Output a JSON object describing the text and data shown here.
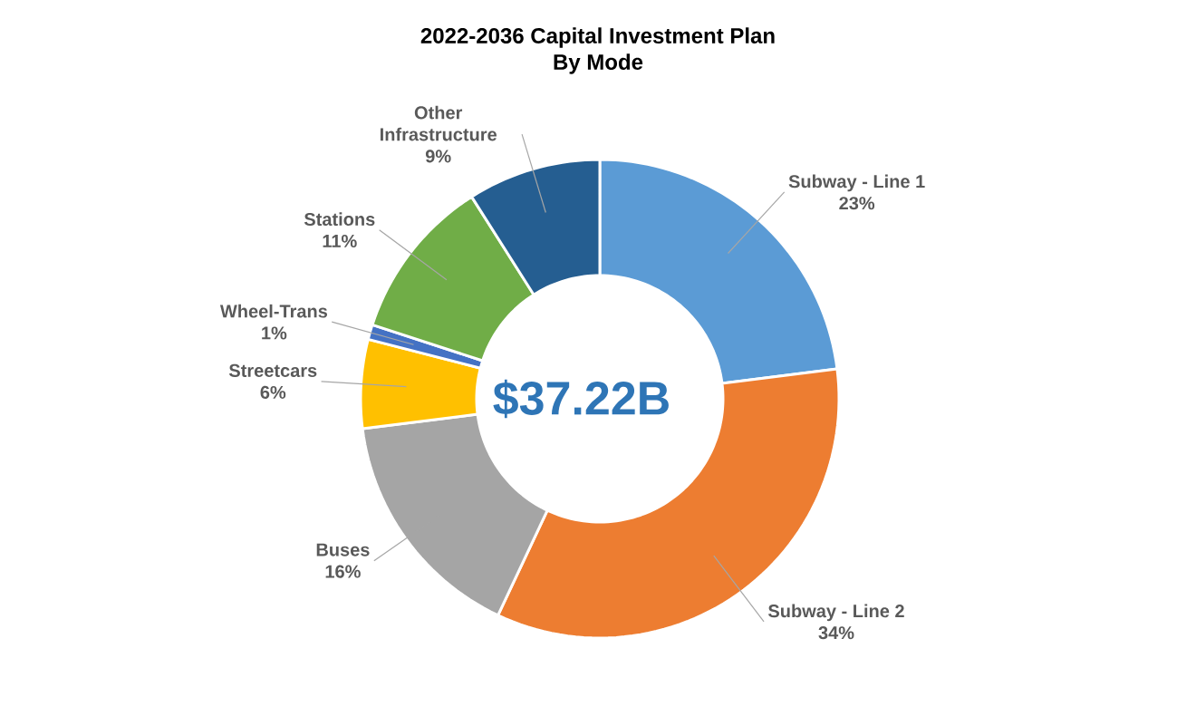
{
  "chart_data": {
    "type": "donut",
    "title": "2022-2036 Capital Investment Plan",
    "subtitle": "By Mode",
    "categories": [
      "Subway - Line 1",
      "Subway - Line 2",
      "Buses",
      "Streetcars",
      "Wheel-Trans",
      "Stations",
      "Other Infrastructure"
    ],
    "values": [
      23,
      34,
      16,
      6,
      1,
      11,
      9
    ],
    "value_labels": [
      "23%",
      "34%",
      "16%",
      "6%",
      "1%",
      "11%",
      "9%"
    ],
    "colors": [
      "#5b9bd5",
      "#ed7d31",
      "#a5a5a5",
      "#ffc000",
      "#4472c4",
      "#70ad47",
      "#255e91"
    ],
    "annotations": [
      "$37.22B"
    ]
  }
}
